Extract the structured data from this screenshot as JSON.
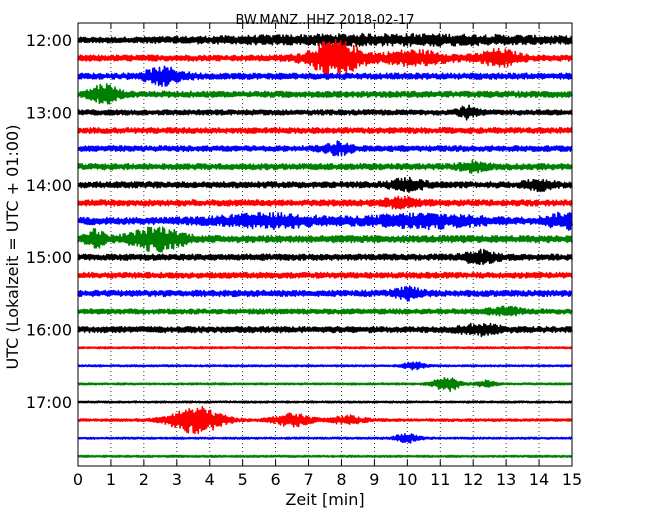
{
  "chart_data": {
    "type": "line",
    "title": "BW.MANZ..HHZ 2018-02-17",
    "xlabel": "Zeit  [min]",
    "ylabel": "UTC (Lokalzeit = UTC + 01:00)",
    "xlim": [
      0,
      15
    ],
    "xticks": [
      0,
      1,
      2,
      3,
      4,
      5,
      6,
      7,
      8,
      9,
      10,
      11,
      12,
      13,
      14,
      15
    ],
    "xtick_labels": [
      "0",
      "1",
      "2",
      "3",
      "4",
      "5",
      "6",
      "7",
      "8",
      "9",
      "10",
      "11",
      "12",
      "13",
      "14",
      "15"
    ],
    "ytick_labels": [
      "12:00",
      "13:00",
      "14:00",
      "15:00",
      "16:00",
      "17:00"
    ],
    "row_minutes": 15,
    "rows_per_hour": 4,
    "grid": true,
    "grid_axis": "x",
    "color_cycle": [
      "#000000",
      "#ff0000",
      "#0000ff",
      "#008000"
    ],
    "traces": [
      {
        "start": "12:00",
        "noise": 2.5,
        "color": "#000000",
        "events": [
          {
            "t": 9.5,
            "amp": 4,
            "w": 5.5
          }
        ]
      },
      {
        "start": "12:15",
        "noise": 3.0,
        "color": "#ff0000",
        "events": [
          {
            "t": 7.8,
            "amp": 16,
            "w": 0.8
          },
          {
            "t": 10.2,
            "amp": 6,
            "w": 1.0
          },
          {
            "t": 12.8,
            "amp": 7,
            "w": 0.6
          }
        ]
      },
      {
        "start": "12:30",
        "noise": 3.0,
        "color": "#0000ff",
        "events": [
          {
            "t": 2.6,
            "amp": 7,
            "w": 0.6
          }
        ]
      },
      {
        "start": "12:45",
        "noise": 3.0,
        "color": "#008000",
        "events": [
          {
            "t": 0.8,
            "amp": 9,
            "w": 0.4
          }
        ]
      },
      {
        "start": "13:00",
        "noise": 2.5,
        "color": "#000000",
        "events": [
          {
            "t": 11.8,
            "amp": 5,
            "w": 0.3
          }
        ]
      },
      {
        "start": "13:15",
        "noise": 2.8,
        "color": "#ff0000",
        "events": []
      },
      {
        "start": "13:30",
        "noise": 2.8,
        "color": "#0000ff",
        "events": [
          {
            "t": 7.9,
            "amp": 5,
            "w": 0.4
          }
        ]
      },
      {
        "start": "13:45",
        "noise": 3.0,
        "color": "#008000",
        "events": [
          {
            "t": 12.0,
            "amp": 4,
            "w": 0.4
          }
        ]
      },
      {
        "start": "14:00",
        "noise": 3.0,
        "color": "#000000",
        "events": [
          {
            "t": 10.0,
            "amp": 5,
            "w": 0.5
          },
          {
            "t": 14.0,
            "amp": 4,
            "w": 0.4
          }
        ]
      },
      {
        "start": "14:15",
        "noise": 3.0,
        "color": "#ff0000",
        "events": [
          {
            "t": 9.8,
            "amp": 4,
            "w": 0.5
          }
        ]
      },
      {
        "start": "14:30",
        "noise": 3.5,
        "color": "#0000ff",
        "events": [
          {
            "t": 5.8,
            "amp": 5,
            "w": 1.6
          },
          {
            "t": 10.5,
            "amp": 5,
            "w": 1.8
          },
          {
            "t": 14.8,
            "amp": 6,
            "w": 0.6
          }
        ]
      },
      {
        "start": "14:45",
        "noise": 3.5,
        "color": "#008000",
        "events": [
          {
            "t": 0.5,
            "amp": 8,
            "w": 0.3
          },
          {
            "t": 2.4,
            "amp": 10,
            "w": 0.8
          }
        ]
      },
      {
        "start": "15:00",
        "noise": 3.0,
        "color": "#000000",
        "events": [
          {
            "t": 12.2,
            "amp": 5,
            "w": 0.5
          }
        ]
      },
      {
        "start": "15:15",
        "noise": 2.8,
        "color": "#ff0000",
        "events": []
      },
      {
        "start": "15:30",
        "noise": 3.0,
        "color": "#0000ff",
        "events": [
          {
            "t": 10.0,
            "amp": 5,
            "w": 0.4
          }
        ]
      },
      {
        "start": "15:45",
        "noise": 2.5,
        "color": "#008000",
        "events": [
          {
            "t": 13.0,
            "amp": 3,
            "w": 0.5
          }
        ]
      },
      {
        "start": "16:00",
        "noise": 3.0,
        "color": "#000000",
        "events": [
          {
            "t": 12.2,
            "amp": 4,
            "w": 0.6
          }
        ]
      },
      {
        "start": "16:15",
        "noise": 0.9,
        "color": "#ff0000",
        "events": []
      },
      {
        "start": "16:30",
        "noise": 0.9,
        "color": "#0000ff",
        "events": [
          {
            "t": 10.2,
            "amp": 4,
            "w": 0.3
          }
        ]
      },
      {
        "start": "16:45",
        "noise": 0.9,
        "color": "#008000",
        "events": [
          {
            "t": 11.2,
            "amp": 7,
            "w": 0.4
          },
          {
            "t": 12.4,
            "amp": 3,
            "w": 0.3
          }
        ]
      },
      {
        "start": "17:00",
        "noise": 0.9,
        "color": "#000000",
        "events": []
      },
      {
        "start": "17:15",
        "noise": 1.2,
        "color": "#ff0000",
        "events": [
          {
            "t": 3.6,
            "amp": 13,
            "w": 0.8
          },
          {
            "t": 6.5,
            "amp": 6,
            "w": 0.6
          },
          {
            "t": 8.2,
            "amp": 4,
            "w": 0.5
          }
        ]
      },
      {
        "start": "17:30",
        "noise": 0.9,
        "color": "#0000ff",
        "events": [
          {
            "t": 10.0,
            "amp": 4,
            "w": 0.4
          }
        ]
      },
      {
        "start": "17:45",
        "noise": 0.9,
        "color": "#008000",
        "events": []
      }
    ]
  }
}
